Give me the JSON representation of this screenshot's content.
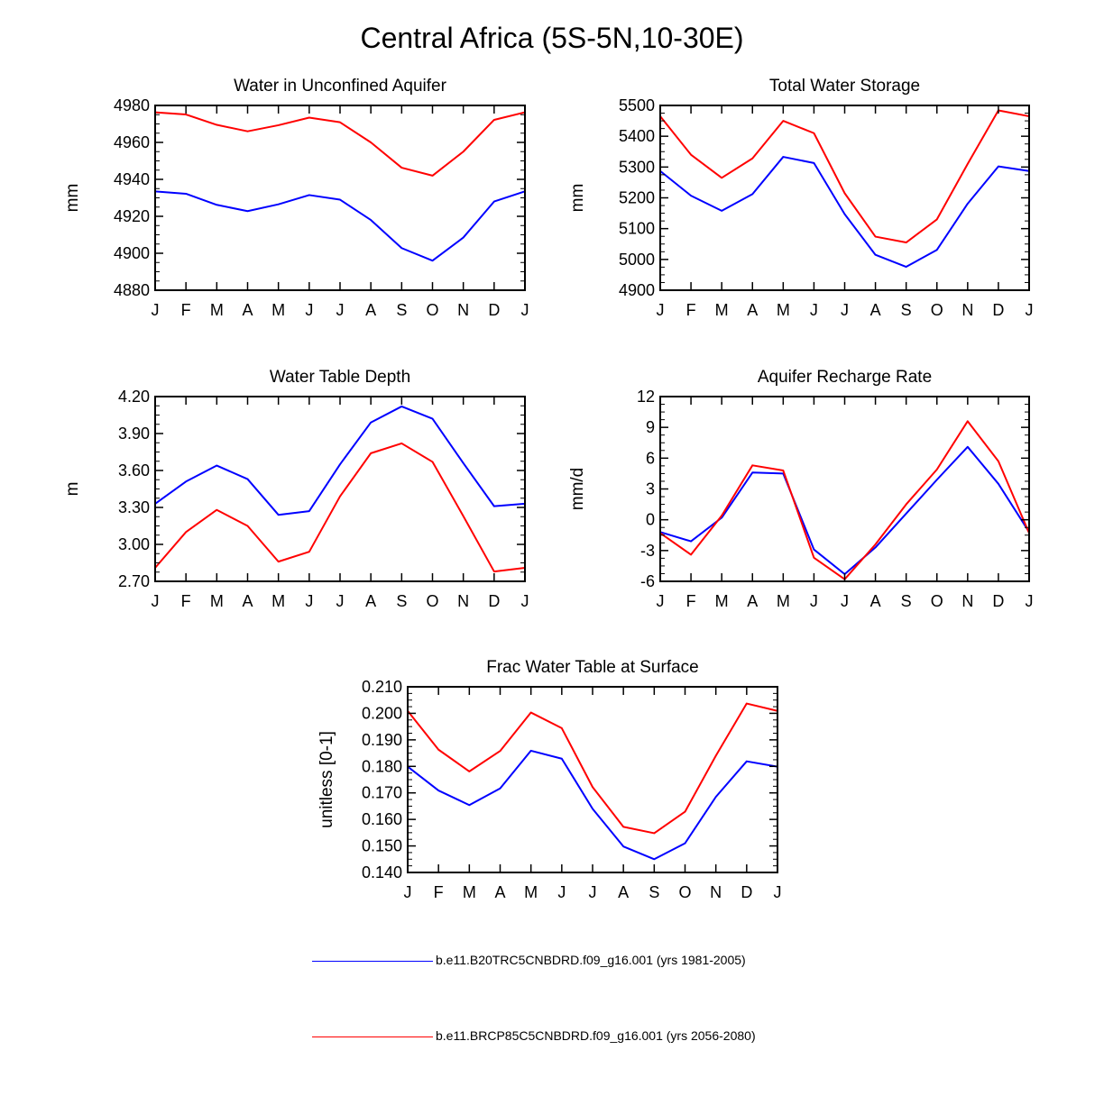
{
  "figure_title": "Central Africa (5S-5N,10-30E)",
  "months": [
    "J",
    "F",
    "M",
    "A",
    "M",
    "J",
    "J",
    "A",
    "S",
    "O",
    "N",
    "D",
    "J"
  ],
  "colors": {
    "baseline": "#0000ff",
    "future": "#ff0000",
    "axis": "#000000"
  },
  "legend": [
    {
      "label": "b.e11.B20TRC5CNBDRD.f09_g16.001 (yrs 1981-2005)",
      "color": "#0000ff"
    },
    {
      "label": "b.e11.BRCP85C5CNBDRD.f09_g16.001 (yrs 2056-2080)",
      "color": "#ff0000"
    }
  ],
  "chart_data": [
    {
      "type": "line",
      "title": "Water in Unconfined Aquifer",
      "ylabel": "mm",
      "ylim": [
        4880,
        4980
      ],
      "yticks": [
        "4880",
        "4900",
        "4920",
        "4940",
        "4960",
        "4980"
      ],
      "series": [
        {
          "name": "b.e11.B20TRC5CNBDRD.f09_g16.001 (yrs 1981-2005)",
          "values": [
            4933.5,
            4932.2,
            4926.2,
            4922.8,
            4926.5,
            4931.5,
            4929.0,
            4918.0,
            4902.8,
            4896.0,
            4908.5,
            4928.0,
            4933.5
          ]
        },
        {
          "name": "b.e11.BRCP85C5CNBDRD.f09_g16.001 (yrs 2056-2080)",
          "values": [
            4976.3,
            4975.1,
            4969.5,
            4966.0,
            4969.3,
            4973.4,
            4970.9,
            4960.0,
            4946.3,
            4942.0,
            4955.0,
            4972.2,
            4976.3
          ]
        }
      ]
    },
    {
      "type": "line",
      "title": "Total Water Storage",
      "ylabel": "mm",
      "ylim": [
        4900,
        5500
      ],
      "yticks": [
        "4900",
        "5000",
        "5100",
        "5200",
        "5300",
        "5400",
        "5500"
      ],
      "series": [
        {
          "name": "b.e11.B20TRC5CNBDRD.f09_g16.001 (yrs 1981-2005)",
          "values": [
            5287,
            5207,
            5158,
            5212,
            5333,
            5313,
            5147,
            5015,
            4976,
            5031,
            5181,
            5302,
            5287
          ]
        },
        {
          "name": "b.e11.BRCP85C5CNBDRD.f09_g16.001 (yrs 2056-2080)",
          "values": [
            5465,
            5340,
            5265,
            5328,
            5450,
            5410,
            5215,
            5074,
            5055,
            5130,
            5310,
            5484,
            5465
          ]
        }
      ]
    },
    {
      "type": "line",
      "title": "Water Table Depth",
      "ylabel": "m",
      "ylim": [
        2.7,
        4.2
      ],
      "yticks": [
        "2.70",
        "3.00",
        "3.30",
        "3.60",
        "3.90",
        "4.20"
      ],
      "series": [
        {
          "name": "b.e11.B20TRC5CNBDRD.f09_g16.001 (yrs 1981-2005)",
          "values": [
            3.33,
            3.51,
            3.64,
            3.53,
            3.24,
            3.27,
            3.65,
            3.99,
            4.12,
            4.02,
            3.66,
            3.31,
            3.33
          ]
        },
        {
          "name": "b.e11.BRCP85C5CNBDRD.f09_g16.001 (yrs 2056-2080)",
          "values": [
            2.81,
            3.1,
            3.28,
            3.15,
            2.86,
            2.94,
            3.39,
            3.74,
            3.82,
            3.67,
            3.23,
            2.78,
            2.81
          ]
        }
      ]
    },
    {
      "type": "line",
      "title": "Aquifer Recharge Rate",
      "ylabel": "mm/d",
      "ylim": [
        -6,
        12
      ],
      "yticks": [
        "-6",
        "-3",
        "0",
        "3",
        "6",
        "9",
        "12"
      ],
      "series": [
        {
          "name": "b.e11.B20TRC5CNBDRD.f09_g16.001 (yrs 1981-2005)",
          "values": [
            -1.2,
            -2.1,
            0.2,
            4.6,
            4.5,
            -2.9,
            -5.3,
            -2.7,
            0.6,
            3.9,
            7.1,
            3.5,
            -1.2
          ]
        },
        {
          "name": "b.e11.BRCP85C5CNBDRD.f09_g16.001 (yrs 2056-2080)",
          "values": [
            -1.3,
            -3.4,
            0.4,
            5.3,
            4.8,
            -3.7,
            -5.8,
            -2.4,
            1.5,
            4.9,
            9.6,
            5.7,
            -1.3
          ]
        }
      ]
    },
    {
      "type": "line",
      "title": "Frac Water Table at Surface",
      "ylabel": "unitless [0-1]",
      "ylim": [
        0.14,
        0.21
      ],
      "yticks": [
        "0.140",
        "0.150",
        "0.160",
        "0.170",
        "0.180",
        "0.190",
        "0.200",
        "0.210"
      ],
      "series": [
        {
          "name": "b.e11.B20TRC5CNBDRD.f09_g16.001 (yrs 1981-2005)",
          "values": [
            0.1799,
            0.1709,
            0.1654,
            0.1717,
            0.1859,
            0.1829,
            0.164,
            0.1498,
            0.145,
            0.151,
            0.1685,
            0.1819,
            0.1799
          ]
        },
        {
          "name": "b.e11.BRCP85C5CNBDRD.f09_g16.001 (yrs 2056-2080)",
          "values": [
            0.2009,
            0.1863,
            0.1781,
            0.1858,
            0.2003,
            0.1944,
            0.1722,
            0.1572,
            0.1548,
            0.1629,
            0.184,
            0.2037,
            0.2009
          ]
        }
      ]
    }
  ]
}
